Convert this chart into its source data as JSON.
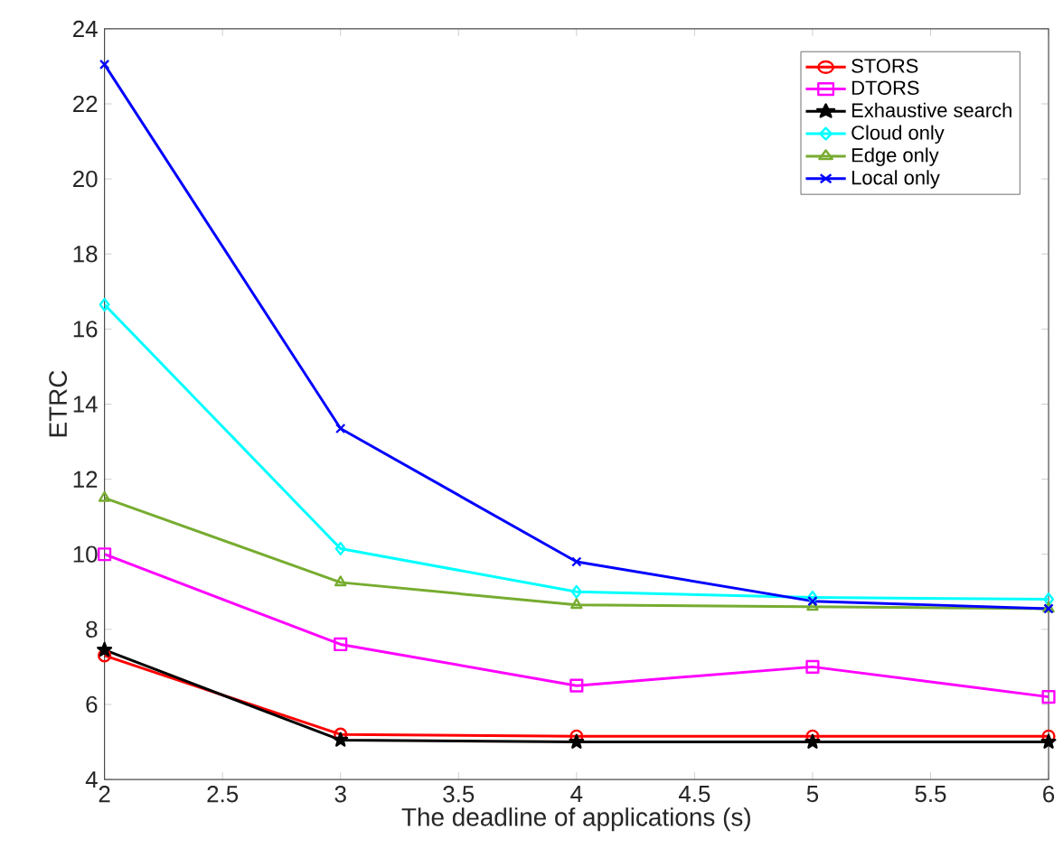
{
  "chart_data": {
    "type": "line",
    "xlabel": "The deadline of applications (s)",
    "ylabel": "ETRC",
    "x": [
      2,
      3,
      4,
      5,
      6
    ],
    "series": [
      {
        "name": "STORS",
        "color": "#ff0000",
        "marker": "circle",
        "values": [
          7.3,
          5.2,
          5.15,
          5.15,
          5.15
        ]
      },
      {
        "name": "DTORS",
        "color": "#ff00ff",
        "marker": "square",
        "values": [
          10.0,
          7.6,
          6.5,
          7.0,
          6.2
        ]
      },
      {
        "name": "Exhaustive search",
        "color": "#000000",
        "marker": "star",
        "values": [
          7.45,
          5.05,
          5.0,
          5.0,
          5.0
        ]
      },
      {
        "name": "Cloud only",
        "color": "#00ffff",
        "marker": "diamond",
        "values": [
          16.65,
          10.15,
          9.0,
          8.85,
          8.8
        ]
      },
      {
        "name": "Edge only",
        "color": "#77ac30",
        "marker": "triangle",
        "values": [
          11.5,
          9.25,
          8.65,
          8.6,
          8.55
        ]
      },
      {
        "name": "Local only",
        "color": "#0000ff",
        "marker": "cross",
        "values": [
          23.05,
          13.35,
          9.8,
          8.75,
          8.55
        ]
      }
    ],
    "xlim": [
      2,
      6
    ],
    "xticks": [
      2,
      2.5,
      3,
      3.5,
      4,
      4.5,
      5,
      5.5,
      6
    ],
    "ylim": [
      4,
      24
    ],
    "yticks": [
      4,
      6,
      8,
      10,
      12,
      14,
      16,
      18,
      20,
      22,
      24
    ],
    "grid": false,
    "legend": "top right",
    "line_style": "solid"
  }
}
